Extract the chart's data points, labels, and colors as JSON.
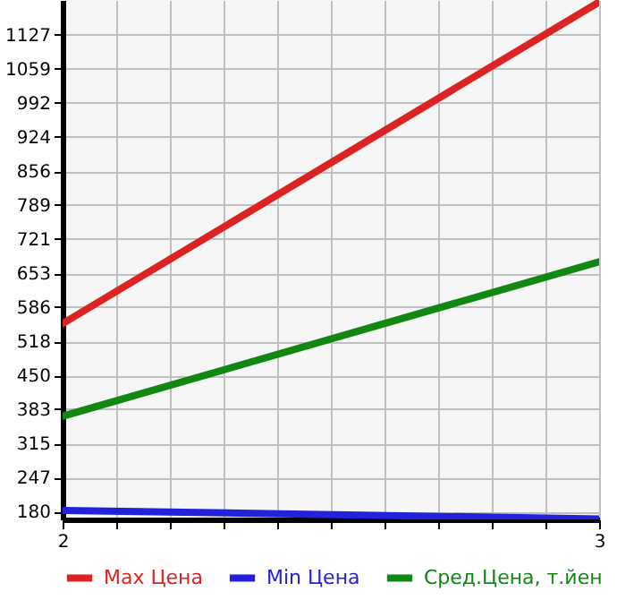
{
  "chart_data": {
    "type": "line",
    "x": [
      2,
      3
    ],
    "xlim": [
      2,
      3
    ],
    "xticks": [
      2,
      {
        "value": 2.1,
        "label": null
      },
      {
        "value": 2.2,
        "label": null
      },
      {
        "value": 2.3,
        "label": null
      },
      {
        "value": 2.4,
        "label": null
      },
      {
        "value": 2.5,
        "label": null
      },
      {
        "value": 2.6,
        "label": null
      },
      {
        "value": 2.7,
        "label": null
      },
      {
        "value": 2.8,
        "label": null
      },
      {
        "value": 2.9,
        "label": null
      },
      3
    ],
    "ylim": [
      164,
      1196
    ],
    "yticks": [
      180,
      247,
      315,
      383,
      450,
      518,
      586,
      653,
      721,
      789,
      856,
      924,
      992,
      1059,
      1127
    ],
    "series": [
      {
        "name": "Max Цена",
        "color": "#dd2222",
        "values": [
          553,
          1192
        ]
      },
      {
        "name": "Min Цена",
        "color": "#2222dd",
        "values": [
          182,
          165
        ]
      },
      {
        "name": "Сред.Цена, т.йен",
        "color": "#118811",
        "values": [
          369,
          676
        ]
      }
    ],
    "grid": true,
    "legend": "bottom",
    "marker": "none",
    "line_style": "solid"
  }
}
